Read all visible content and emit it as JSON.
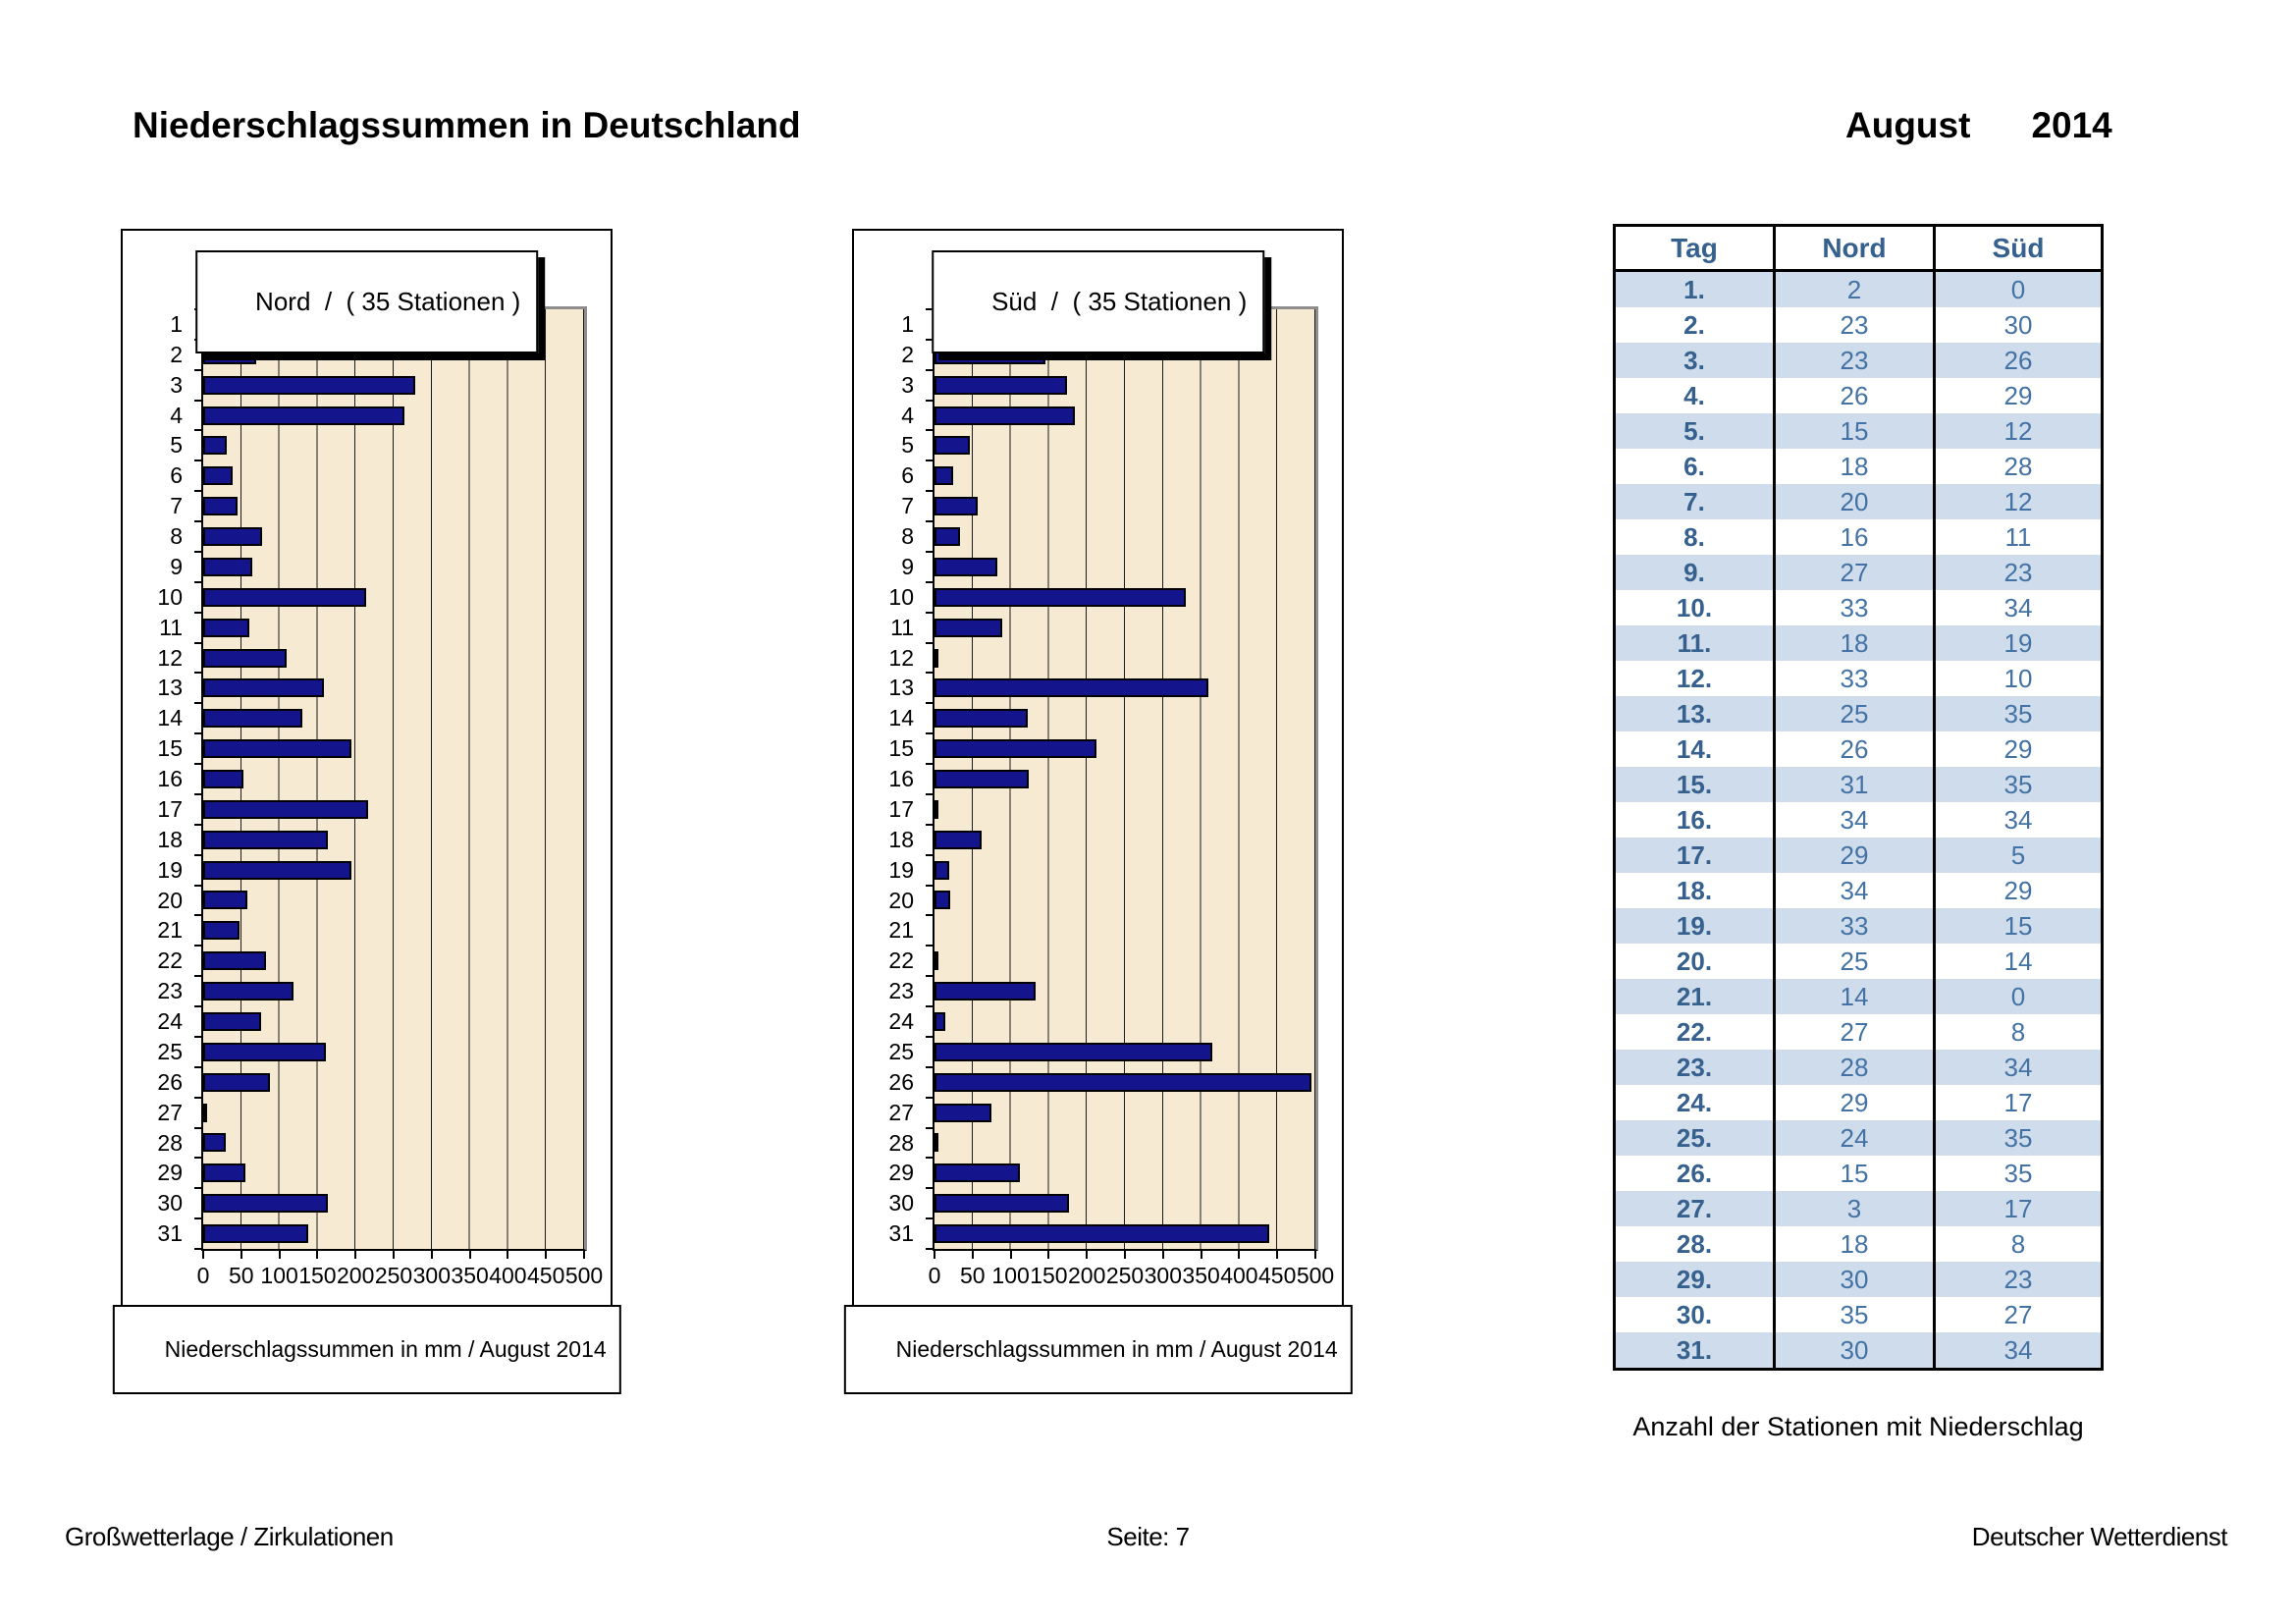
{
  "page": {
    "title": "Niederschlagssummen in Deutschland",
    "month": "August",
    "year": "2014",
    "table_caption": "Anzahl der Stationen mit Niederschlag",
    "footer_left": "Großwetterlage / Zirkulationen",
    "footer_center": "Seite: 7",
    "footer_right": "Deutscher Wetterdienst"
  },
  "colors": {
    "bar_fill": "#14148c",
    "plot_bg": "#f6ebd2",
    "plot_frame": "#8e8e8e",
    "stripe": "#cfdcec",
    "headline_color": "#36618e",
    "value_color": "#4472a4"
  },
  "chart_data": [
    {
      "type": "bar",
      "orientation": "horizontal",
      "title": "Nord  /  ( 35 Stationen )",
      "xlabel": "Niederschlagssummen in mm / August 2014",
      "categories": [
        "1",
        "2",
        "3",
        "4",
        "5",
        "6",
        "7",
        "8",
        "9",
        "10",
        "11",
        "12",
        "13",
        "14",
        "15",
        "16",
        "17",
        "18",
        "19",
        "20",
        "21",
        "22",
        "23",
        "24",
        "25",
        "26",
        "27",
        "28",
        "29",
        "30",
        "31"
      ],
      "values": [
        3,
        70,
        278,
        264,
        31,
        39,
        45,
        77,
        64,
        214,
        61,
        110,
        158,
        130,
        195,
        53,
        217,
        164,
        194,
        58,
        48,
        83,
        118,
        76,
        161,
        87,
        3,
        30,
        55,
        164,
        138
      ],
      "xlim": [
        0,
        500
      ],
      "xticks": [
        0,
        50,
        100,
        150,
        200,
        250,
        300,
        350,
        400,
        450,
        500
      ],
      "grid": "vertical",
      "legend": "none"
    },
    {
      "type": "bar",
      "orientation": "horizontal",
      "title": "Süd  /  ( 35 Stationen )",
      "xlabel": "Niederschlagssummen in mm / August 2014",
      "categories": [
        "1",
        "2",
        "3",
        "4",
        "5",
        "6",
        "7",
        "8",
        "9",
        "10",
        "11",
        "12",
        "13",
        "14",
        "15",
        "16",
        "17",
        "18",
        "19",
        "20",
        "21",
        "22",
        "23",
        "24",
        "25",
        "26",
        "27",
        "28",
        "29",
        "30",
        "31"
      ],
      "values": [
        0,
        145,
        174,
        184,
        47,
        25,
        57,
        34,
        83,
        330,
        89,
        4,
        360,
        122,
        213,
        124,
        3,
        62,
        19,
        20,
        0,
        5,
        133,
        14,
        365,
        495,
        75,
        4,
        112,
        176,
        440
      ],
      "xlim": [
        0,
        500
      ],
      "xticks": [
        0,
        50,
        100,
        150,
        200,
        250,
        300,
        350,
        400,
        450,
        500
      ],
      "grid": "vertical",
      "legend": "none"
    }
  ],
  "table": {
    "headers": [
      "Tag",
      "Nord",
      "Süd"
    ],
    "rows": [
      [
        "1.",
        2,
        0
      ],
      [
        "2.",
        23,
        30
      ],
      [
        "3.",
        23,
        26
      ],
      [
        "4.",
        26,
        29
      ],
      [
        "5.",
        15,
        12
      ],
      [
        "6.",
        18,
        28
      ],
      [
        "7.",
        20,
        12
      ],
      [
        "8.",
        16,
        11
      ],
      [
        "9.",
        27,
        23
      ],
      [
        "10.",
        33,
        34
      ],
      [
        "11.",
        18,
        19
      ],
      [
        "12.",
        33,
        10
      ],
      [
        "13.",
        25,
        35
      ],
      [
        "14.",
        26,
        29
      ],
      [
        "15.",
        31,
        35
      ],
      [
        "16.",
        34,
        34
      ],
      [
        "17.",
        29,
        5
      ],
      [
        "18.",
        34,
        29
      ],
      [
        "19.",
        33,
        15
      ],
      [
        "20.",
        25,
        14
      ],
      [
        "21.",
        14,
        0
      ],
      [
        "22.",
        27,
        8
      ],
      [
        "23.",
        28,
        34
      ],
      [
        "24.",
        29,
        17
      ],
      [
        "25.",
        24,
        35
      ],
      [
        "26.",
        15,
        35
      ],
      [
        "27.",
        3,
        17
      ],
      [
        "28.",
        18,
        8
      ],
      [
        "29.",
        30,
        23
      ],
      [
        "30.",
        35,
        27
      ],
      [
        "31.",
        30,
        34
      ]
    ]
  }
}
